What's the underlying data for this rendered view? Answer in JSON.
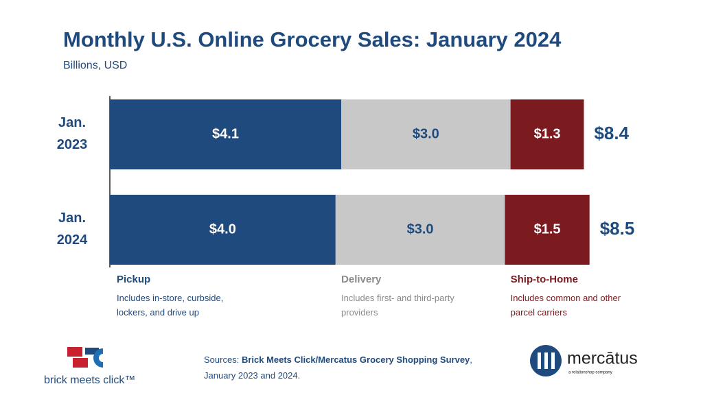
{
  "chart_data": {
    "type": "stacked-bar-horizontal",
    "title": "Monthly U.S. Online Grocery Sales: January 2024",
    "subtitle": "Billions, USD",
    "categories": [
      "Jan. 2023",
      "Jan. 2024"
    ],
    "series": [
      {
        "name": "Pickup",
        "description": "Includes in-store, curbside, lockers, and drive up",
        "color": "#1f4a7e",
        "label_color": "#ffffff",
        "values": [
          4.1,
          4.0
        ],
        "value_labels": [
          "$4.1",
          "$4.0"
        ]
      },
      {
        "name": "Delivery",
        "description": "Includes first- and third-party providers",
        "color": "#c8c8c8",
        "label_color": "#1f4a7e",
        "values": [
          3.0,
          3.0
        ],
        "value_labels": [
          "$3.0",
          "$3.0"
        ]
      },
      {
        "name": "Ship-to-Home",
        "description": "Includes common and other parcel carriers",
        "color": "#7b1a1f",
        "label_color": "#ffffff",
        "values": [
          1.3,
          1.5
        ],
        "value_labels": [
          "$1.3",
          "$1.5"
        ]
      }
    ],
    "totals": {
      "values": [
        8.4,
        8.5
      ],
      "value_labels": [
        "$8.4",
        "$8.5"
      ]
    },
    "source": {
      "prefix": "Sources:",
      "name": "Brick Meets Click/Mercatus Grocery Shopping Survey",
      "suffix": ", January 2023 and 2024."
    },
    "logos": {
      "left": "brick meets click™",
      "right": "mercātus",
      "right_tagline": "a relationshop company"
    }
  }
}
